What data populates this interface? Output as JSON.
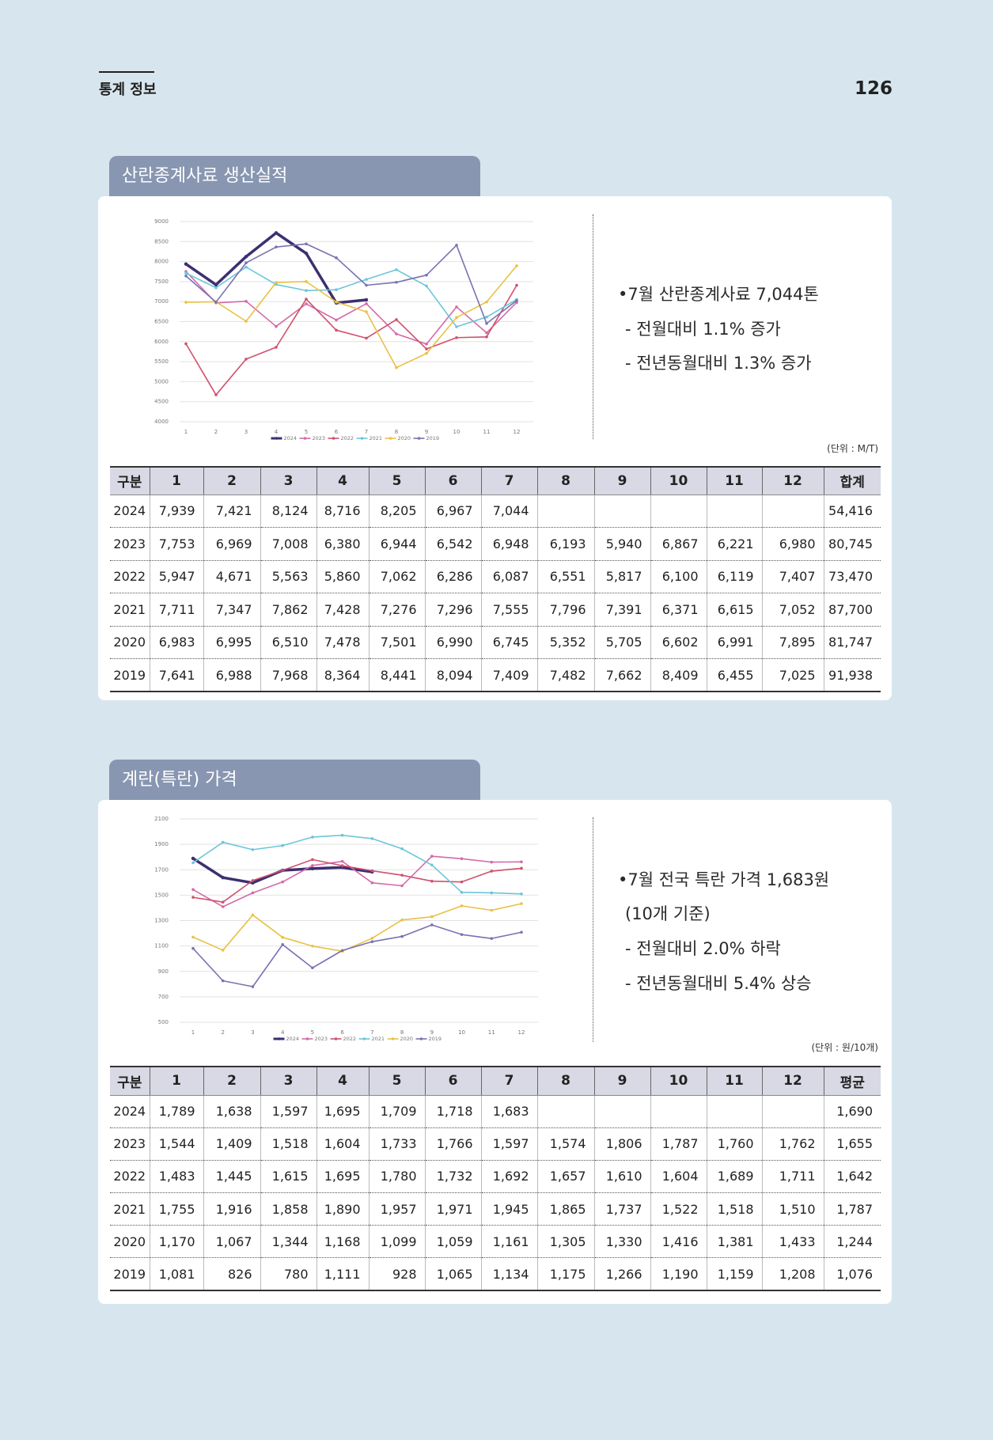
{
  "header": {
    "section": "통계 정보",
    "page": "126"
  },
  "sections": [
    {
      "title": "산란종계사료 생산실적",
      "notes": [
        "•7월 산란종계사료 7,044톤",
        "- 전월대비 1.1% 증가",
        "- 전년동월대비 1.3% 증가"
      ],
      "unit": "(단위 : M/T)",
      "table": {
        "header": [
          "구분",
          "1",
          "2",
          "3",
          "4",
          "5",
          "6",
          "7",
          "8",
          "9",
          "10",
          "11",
          "12",
          "합계"
        ],
        "rows": [
          [
            "2024",
            "7,939",
            "7,421",
            "8,124",
            "8,716",
            "8,205",
            "6,967",
            "7,044",
            null,
            null,
            null,
            null,
            null,
            "54,416"
          ],
          [
            "2023",
            "7,753",
            "6,969",
            "7,008",
            "6,380",
            "6,944",
            "6,542",
            "6,948",
            "6,193",
            "5,940",
            "6,867",
            "6,221",
            "6,980",
            "80,745"
          ],
          [
            "2022",
            "5,947",
            "4,671",
            "5,563",
            "5,860",
            "7,062",
            "6,286",
            "6,087",
            "6,551",
            "5,817",
            "6,100",
            "6,119",
            "7,407",
            "73,470"
          ],
          [
            "2021",
            "7,711",
            "7,347",
            "7,862",
            "7,428",
            "7,276",
            "7,296",
            "7,555",
            "7,796",
            "7,391",
            "6,371",
            "6,615",
            "7,052",
            "87,700"
          ],
          [
            "2020",
            "6,983",
            "6,995",
            "6,510",
            "7,478",
            "7,501",
            "6,990",
            "6,745",
            "5,352",
            "5,705",
            "6,602",
            "6,991",
            "7,895",
            "81,747"
          ],
          [
            "2019",
            "7,641",
            "6,988",
            "7,968",
            "8,364",
            "8,441",
            "8,094",
            "7,409",
            "7,482",
            "7,662",
            "8,409",
            "6,455",
            "7,025",
            "91,938"
          ]
        ]
      }
    },
    {
      "title": "계란(특란) 가격",
      "notes": [
        "•7월 전국 특란 가격 1,683원",
        "(10개 기준)",
        "- 전월대비 2.0% 하락",
        "- 전년동월대비 5.4% 상승"
      ],
      "unit": "(단위 : 원/10개)",
      "table": {
        "header": [
          "구분",
          "1",
          "2",
          "3",
          "4",
          "5",
          "6",
          "7",
          "8",
          "9",
          "10",
          "11",
          "12",
          "평균"
        ],
        "rows": [
          [
            "2024",
            "1,789",
            "1,638",
            "1,597",
            "1,695",
            "1,709",
            "1,718",
            "1,683",
            null,
            null,
            null,
            null,
            null,
            "1,690"
          ],
          [
            "2023",
            "1,544",
            "1,409",
            "1,518",
            "1,604",
            "1,733",
            "1,766",
            "1,597",
            "1,574",
            "1,806",
            "1,787",
            "1,760",
            "1,762",
            "1,655"
          ],
          [
            "2022",
            "1,483",
            "1,445",
            "1,615",
            "1,695",
            "1,780",
            "1,732",
            "1,692",
            "1,657",
            "1,610",
            "1,604",
            "1,689",
            "1,711",
            "1,642"
          ],
          [
            "2021",
            "1,755",
            "1,916",
            "1,858",
            "1,890",
            "1,957",
            "1,971",
            "1,945",
            "1,865",
            "1,737",
            "1,522",
            "1,518",
            "1,510",
            "1,787"
          ],
          [
            "2020",
            "1,170",
            "1,067",
            "1,344",
            "1,168",
            "1,099",
            "1,059",
            "1,161",
            "1,305",
            "1,330",
            "1,416",
            "1,381",
            "1,433",
            "1,244"
          ],
          [
            "2019",
            "1,081",
            "826",
            "780",
            "1,111",
            "928",
            "1,065",
            "1,134",
            "1,175",
            "1,266",
            "1,190",
            "1,159",
            "1,208",
            "1,076"
          ]
        ]
      }
    }
  ],
  "chart_data": [
    {
      "type": "line",
      "categories": [
        "1",
        "2",
        "3",
        "4",
        "5",
        "6",
        "7",
        "8",
        "9",
        "10",
        "11",
        "12"
      ],
      "ylim": [
        4000,
        9000
      ],
      "yticks": [
        4000,
        4500,
        5000,
        5500,
        6000,
        6500,
        7000,
        7500,
        8000,
        8500,
        9000
      ],
      "grid": true,
      "legend": "bottom",
      "series": [
        {
          "name": "2024",
          "color": "#3d2f70",
          "values": [
            7939,
            7421,
            8124,
            8716,
            8205,
            6967,
            7044,
            null,
            null,
            null,
            null,
            null
          ]
        },
        {
          "name": "2023",
          "color": "#d36aa8",
          "values": [
            7753,
            6969,
            7008,
            6380,
            6944,
            6542,
            6948,
            6193,
            5940,
            6867,
            6221,
            6980
          ]
        },
        {
          "name": "2022",
          "color": "#cf516c",
          "values": [
            5947,
            4671,
            5563,
            5860,
            7062,
            6286,
            6087,
            6551,
            5817,
            6100,
            6119,
            7407
          ]
        },
        {
          "name": "2021",
          "color": "#6cc6d9",
          "values": [
            7711,
            7347,
            7862,
            7428,
            7276,
            7296,
            7555,
            7796,
            7391,
            6371,
            6615,
            7052
          ]
        },
        {
          "name": "2020",
          "color": "#e9c144",
          "values": [
            6983,
            6995,
            6510,
            7478,
            7501,
            6990,
            6745,
            5352,
            5705,
            6602,
            6991,
            7895
          ]
        },
        {
          "name": "2019",
          "color": "#7a72b1",
          "values": [
            7641,
            6988,
            7968,
            8364,
            8441,
            8094,
            7409,
            7482,
            7662,
            8409,
            6455,
            7025
          ]
        }
      ]
    },
    {
      "type": "line",
      "categories": [
        "1",
        "2",
        "3",
        "4",
        "5",
        "6",
        "7",
        "8",
        "9",
        "10",
        "11",
        "12"
      ],
      "ylim": [
        500,
        2100
      ],
      "yticks": [
        500,
        700,
        900,
        1100,
        1300,
        1500,
        1700,
        1900,
        2100
      ],
      "grid": true,
      "legend": "bottom",
      "series": [
        {
          "name": "2024",
          "color": "#3d2f70",
          "values": [
            1789,
            1638,
            1597,
            1695,
            1709,
            1718,
            1683,
            null,
            null,
            null,
            null,
            null
          ]
        },
        {
          "name": "2023",
          "color": "#d36aa8",
          "values": [
            1544,
            1409,
            1518,
            1604,
            1733,
            1766,
            1597,
            1574,
            1806,
            1787,
            1760,
            1762
          ]
        },
        {
          "name": "2022",
          "color": "#cf516c",
          "values": [
            1483,
            1445,
            1615,
            1695,
            1780,
            1732,
            1692,
            1657,
            1610,
            1604,
            1689,
            1711
          ]
        },
        {
          "name": "2021",
          "color": "#6cc6d9",
          "values": [
            1755,
            1916,
            1858,
            1890,
            1957,
            1971,
            1945,
            1865,
            1737,
            1522,
            1518,
            1510
          ]
        },
        {
          "name": "2020",
          "color": "#e9c144",
          "values": [
            1170,
            1067,
            1344,
            1168,
            1099,
            1059,
            1161,
            1305,
            1330,
            1416,
            1381,
            1433
          ]
        },
        {
          "name": "2019",
          "color": "#7a72b1",
          "values": [
            1081,
            826,
            780,
            1111,
            928,
            1065,
            1134,
            1175,
            1266,
            1190,
            1159,
            1208
          ]
        }
      ]
    }
  ]
}
